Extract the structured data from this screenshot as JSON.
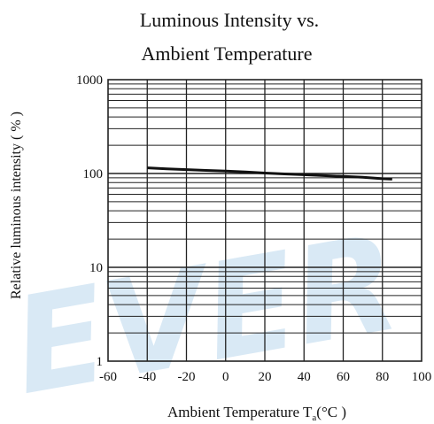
{
  "watermark": {
    "text": "EVER",
    "color": "#d9e9f5"
  },
  "colors": {
    "line": "#111111",
    "grid": "#222222",
    "background": "#ffffff"
  },
  "chart_data": {
    "type": "line",
    "title_line1": "Luminous Intensity vs.",
    "title_line2": "Ambient Temperature",
    "xlabel": "Ambient Temperature T",
    "xlabel_sub": "a",
    "xlabel_unit": "(°C )",
    "ylabel": "Relative luminous intensity ( % )",
    "xlim": [
      -60,
      100
    ],
    "ylim": [
      1,
      1000
    ],
    "y_scale": "log",
    "grid": true,
    "x_ticks": [
      -60,
      -40,
      -20,
      0,
      20,
      40,
      60,
      80,
      100
    ],
    "y_ticks": [
      1,
      10,
      100,
      1000
    ],
    "series": [
      {
        "x": [
          -40,
          -30,
          -20,
          -10,
          0,
          10,
          20,
          30,
          40,
          50,
          60,
          70,
          80,
          85
        ],
        "y": [
          115,
          112,
          110,
          108,
          106,
          104,
          101,
          99,
          97,
          95,
          93,
          91,
          88,
          87
        ]
      }
    ]
  }
}
